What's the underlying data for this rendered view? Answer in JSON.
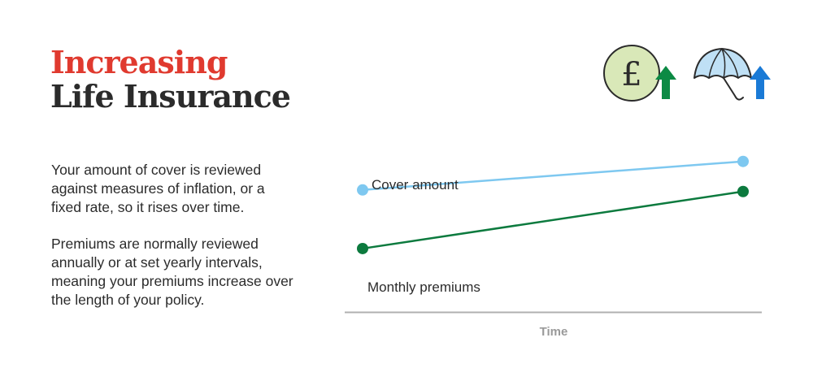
{
  "header": {
    "title_line1": "Increasing",
    "title_line2": "Life Insurance"
  },
  "body_text": {
    "paragraph1": "Your amount of cover is reviewed against measures of inflation, or a fixed rate, so it rises over time.",
    "paragraph2": "Premiums are normally reviewed annually or at set yearly intervals, meaning your premiums increase over the length of your policy."
  },
  "icons": [
    {
      "name": "pound-coin-icon",
      "symbol": "£"
    },
    {
      "name": "green-up-arrow-icon"
    },
    {
      "name": "umbrella-icon"
    },
    {
      "name": "blue-up-arrow-icon"
    }
  ],
  "colors": {
    "title_accent": "#e03a2f",
    "title_dark": "#2b2b2b",
    "cover_line": "#7ec8f0",
    "premium_line": "#0c7a3e",
    "axis": "#b0b0b0",
    "coin_fill": "#d9e8b8",
    "green_arrow": "#0c8a44",
    "blue_arrow": "#1a7ad6",
    "umbrella_fill": "#bfe0f5"
  },
  "chart_data": {
    "type": "line",
    "xlabel": "Time",
    "ylabel": "",
    "x": [
      0,
      1
    ],
    "xlim": [
      0,
      1
    ],
    "ylim": [
      0,
      10
    ],
    "grid": false,
    "series": [
      {
        "name": "Cover amount",
        "values": [
          7.6,
          9.4
        ],
        "color": "#7ec8f0"
      },
      {
        "name": "Monthly premiums",
        "values": [
          3.9,
          7.5
        ],
        "color": "#0c7a3e"
      }
    ]
  }
}
